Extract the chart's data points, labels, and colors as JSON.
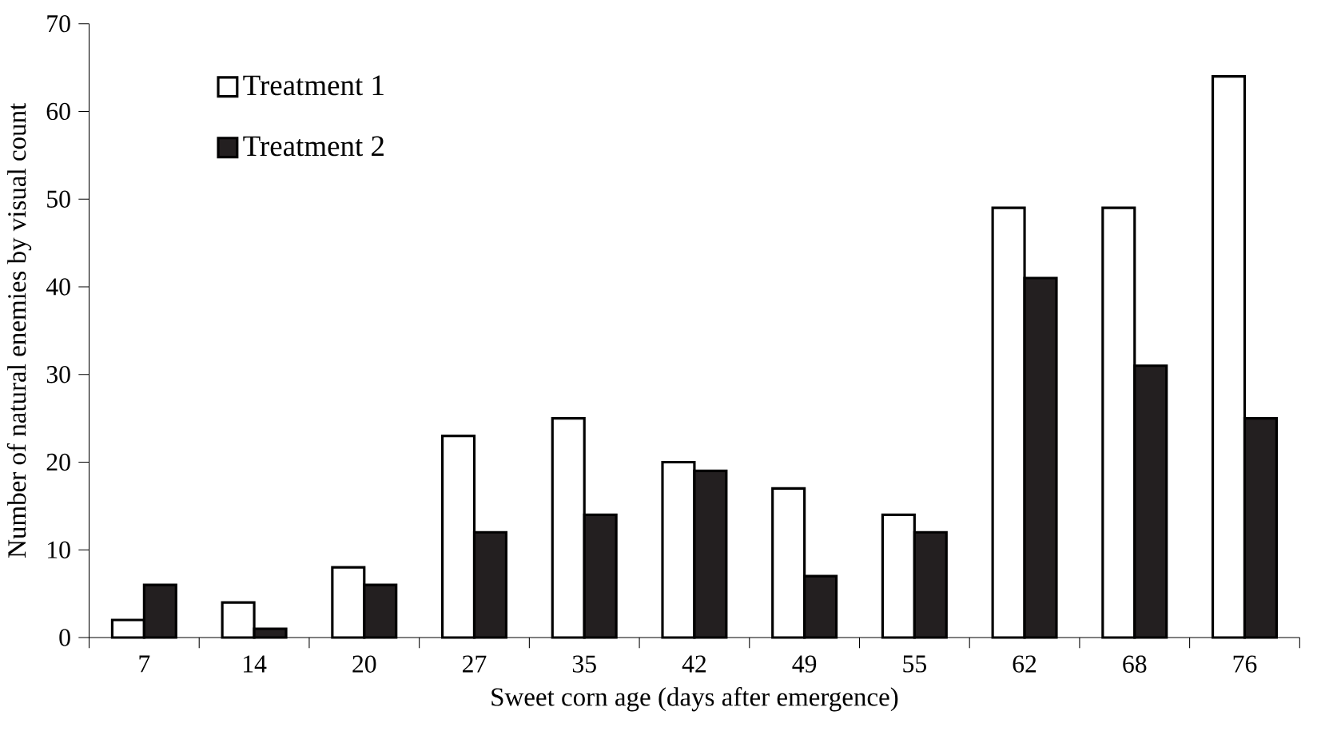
{
  "chart_data": {
    "type": "bar",
    "xlabel": "Sweet corn age (days after emergence)",
    "ylabel": "Number of natural enemies by visual count",
    "categories": [
      "7",
      "14",
      "20",
      "27",
      "35",
      "42",
      "49",
      "55",
      "62",
      "68",
      "76"
    ],
    "series": [
      {
        "name": "Treatment 1",
        "color": "#ffffff",
        "values": [
          2,
          4,
          8,
          23,
          25,
          20,
          17,
          14,
          49,
          49,
          64
        ]
      },
      {
        "name": "Treatment 2",
        "color": "#231f20",
        "values": [
          6,
          1,
          6,
          12,
          14,
          19,
          7,
          12,
          41,
          31,
          25
        ]
      }
    ],
    "ylim": [
      0,
      70
    ],
    "yticks": [
      0,
      10,
      20,
      30,
      40,
      50,
      60,
      70
    ],
    "grid": false,
    "legend": "top left"
  }
}
